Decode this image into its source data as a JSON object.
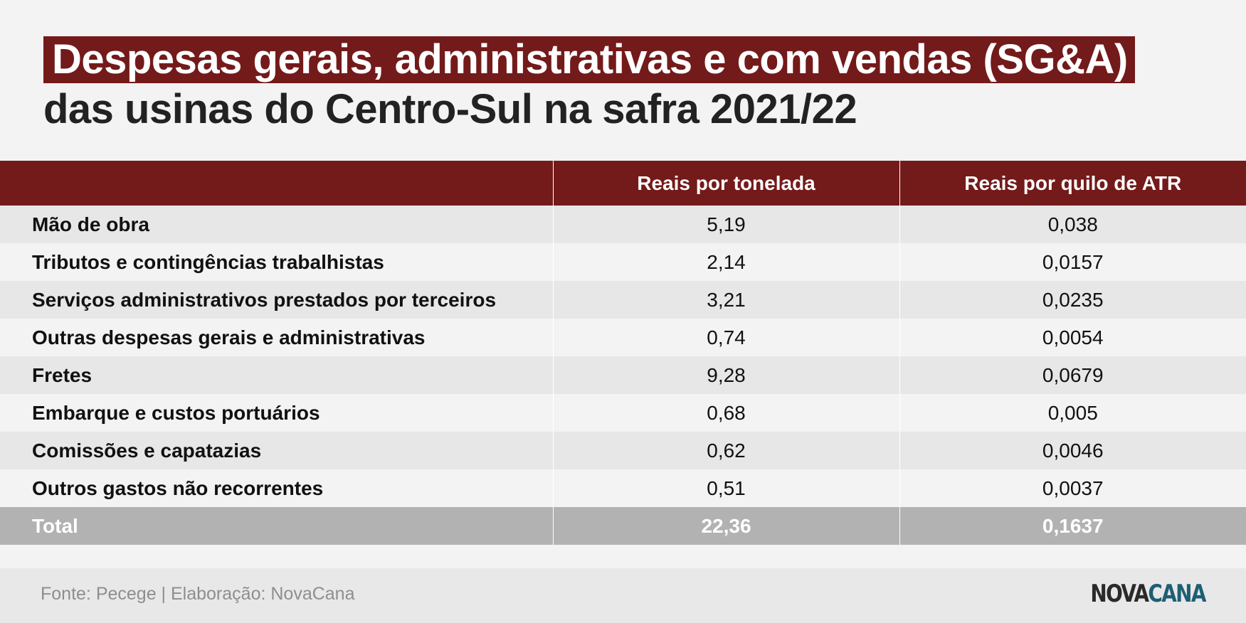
{
  "title": {
    "highlight": "Despesas gerais, administrativas e com vendas (SG&A)",
    "subtitle": "das usinas do Centro-Sul na safra 2021/22"
  },
  "chart_data": {
    "type": "table",
    "columns": [
      "",
      "Reais por tonelada",
      "Reais por quilo de ATR"
    ],
    "rows": [
      {
        "label": "Mão de obra",
        "per_ton": "5,19",
        "per_kg_atr": "0,038"
      },
      {
        "label": "Tributos e contingências trabalhistas",
        "per_ton": "2,14",
        "per_kg_atr": "0,0157"
      },
      {
        "label": "Serviços administrativos prestados por terceiros",
        "per_ton": "3,21",
        "per_kg_atr": "0,0235"
      },
      {
        "label": "Outras despesas gerais e administrativas",
        "per_ton": "0,74",
        "per_kg_atr": "0,0054"
      },
      {
        "label": "Fretes",
        "per_ton": "9,28",
        "per_kg_atr": "0,0679"
      },
      {
        "label": "Embarque e custos portuários",
        "per_ton": "0,68",
        "per_kg_atr": "0,005"
      },
      {
        "label": "Comissões e capatazias",
        "per_ton": "0,62",
        "per_kg_atr": "0,0046"
      },
      {
        "label": "Outros gastos não recorrentes",
        "per_ton": "0,51",
        "per_kg_atr": "0,0037"
      }
    ],
    "total": {
      "label": "Total",
      "per_ton": "22,36",
      "per_kg_atr": "0,1637"
    }
  },
  "footer": {
    "source": "Fonte: Pecege | Elaboração: NovaCana",
    "logo_part1": "NOVA",
    "logo_part2": "CANA"
  },
  "colors": {
    "header_bg": "#731a1a",
    "total_bg": "#b2b2b2",
    "logo_accent": "#1d5f74"
  }
}
